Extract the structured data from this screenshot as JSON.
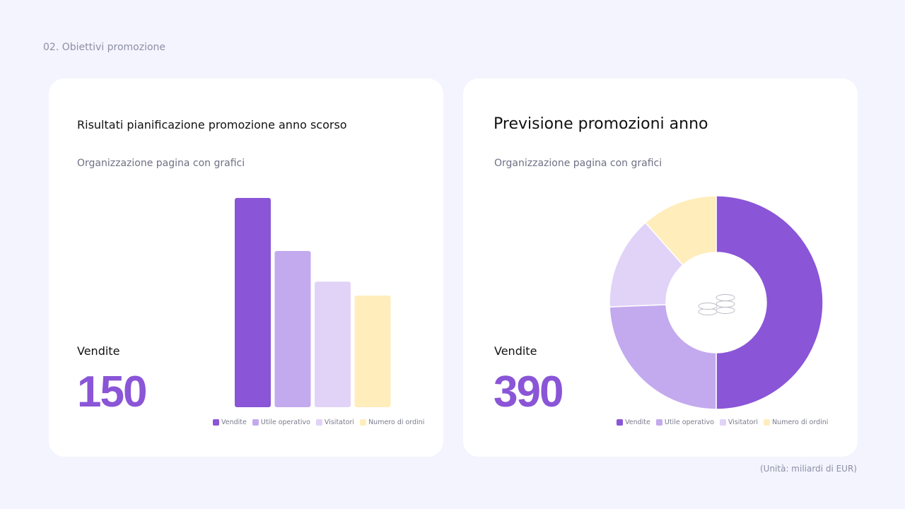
{
  "section_label": "02. Obiettivi promozione",
  "unit_note": "(Unità: miliardi di EUR)",
  "left_card": {
    "title": "Risultati pianificazione promozione anno scorso",
    "subtitle": "Organizzazione pagina con grafici",
    "kpi_label": "Vendite",
    "kpi_value": "150"
  },
  "right_card": {
    "title": "Previsione promozioni anno",
    "subtitle": "Organizzazione pagina con grafici",
    "kpi_label": "Vendite",
    "kpi_value": "390"
  },
  "colors": {
    "vendite": "#8a55d7",
    "utile_operativo": "#c3aaee",
    "visitatori": "#e1d3f7",
    "numero_di_ordini": "#ffedbb",
    "accent": "#8a55d7"
  },
  "center_icon": "coins-icon",
  "chart_data": [
    {
      "type": "bar",
      "categories": [
        "Vendite",
        "Utile operativo",
        "Visitatori",
        "Numero di ordini"
      ],
      "values": [
        150,
        112,
        90,
        80
      ],
      "ylim": [
        0,
        150
      ],
      "grid": false,
      "legend": "bottom",
      "legend_entries": [
        "Vendite",
        "Utile operativo",
        "Visitatori",
        "Numero di ordini"
      ]
    },
    {
      "type": "pie",
      "donut": true,
      "categories": [
        "Vendite",
        "Utile operativo",
        "Visitatori",
        "Numero di ordini"
      ],
      "values": [
        390,
        190,
        110,
        90
      ],
      "legend": "bottom",
      "legend_entries": [
        "Vendite",
        "Utile operativo",
        "Visitatori",
        "Numero di ordini"
      ]
    }
  ]
}
